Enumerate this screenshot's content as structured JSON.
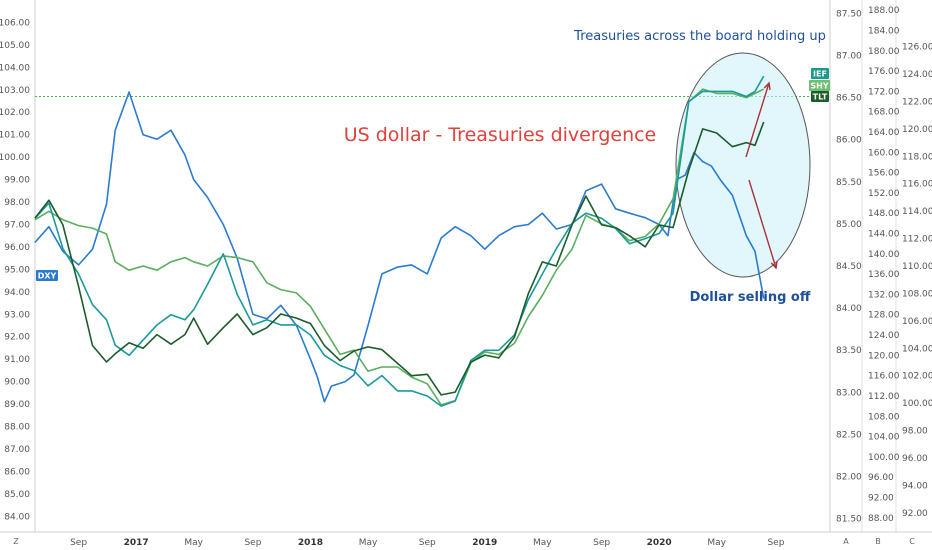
{
  "chart_data": {
    "type": "line",
    "title": "US dollar - Treasuries divergence",
    "annotations": [
      "Treasuries across the board holding up",
      "Dollar selling off"
    ],
    "x_ticks": [
      {
        "label": "Sep",
        "x": 2016.67
      },
      {
        "label": "2017",
        "x": 2017.0
      },
      {
        "label": "May",
        "x": 2017.33
      },
      {
        "label": "Sep",
        "x": 2017.67
      },
      {
        "label": "2018",
        "x": 2018.0
      },
      {
        "label": "May",
        "x": 2018.33
      },
      {
        "label": "Sep",
        "x": 2018.67
      },
      {
        "label": "2019",
        "x": 2019.0
      },
      {
        "label": "May",
        "x": 2019.33
      },
      {
        "label": "Sep",
        "x": 2019.67
      },
      {
        "label": "2020",
        "x": 2020.0
      },
      {
        "label": "May",
        "x": 2020.33
      },
      {
        "label": "Sep",
        "x": 2020.67
      }
    ],
    "x_range": [
      2016.42,
      2020.98
    ],
    "axes": {
      "left": {
        "range": [
          83.3,
          107.0
        ],
        "ticks": [
          "84.00",
          "85.00",
          "86.00",
          "87.00",
          "88.00",
          "89.00",
          "90.00",
          "91.00",
          "92.00",
          "93.00",
          "94.00",
          "95.00",
          "96.00",
          "97.00",
          "98.00",
          "99.00",
          "100.00",
          "101.00",
          "102.00",
          "103.00",
          "104.00",
          "105.00",
          "106.00"
        ]
      },
      "right1": {
        "range": [
          81.34,
          87.66
        ],
        "ticks": [
          "81.50",
          "82.00",
          "82.50",
          "83.00",
          "83.50",
          "84.00",
          "84.50",
          "85.00",
          "85.50",
          "86.00",
          "86.50",
          "87.00",
          "87.50"
        ]
      },
      "right2": {
        "range": [
          85.2,
          190.0
        ],
        "ticks": [
          "88.00",
          "92.00",
          "96.00",
          "100.00",
          "104.00",
          "108.00",
          "112.00",
          "116.00",
          "120.00",
          "124.00",
          "128.00",
          "132.00",
          "136.00",
          "140.00",
          "144.00",
          "148.00",
          "152.00",
          "156.00",
          "160.00",
          "164.00",
          "168.00",
          "172.00",
          "176.00",
          "180.00",
          "184.00",
          "188.00"
        ]
      },
      "right3": {
        "range": [
          90.6,
          129.4
        ],
        "ticks": [
          "92.00",
          "94.00",
          "96.00",
          "98.00",
          "100.00",
          "102.00",
          "104.00",
          "106.00",
          "108.00",
          "110.00",
          "112.00",
          "114.00",
          "116.00",
          "118.00",
          "120.00",
          "122.00",
          "124.00",
          "126.00"
        ]
      }
    },
    "reference_line": {
      "axis": "left",
      "value": 102.7
    },
    "series": [
      {
        "name": "DXY",
        "axis": "left",
        "color": "#2a7bd0",
        "x": [
          2016.42,
          2016.5,
          2016.58,
          2016.67,
          2016.75,
          2016.83,
          2016.88,
          2016.96,
          2017.04,
          2017.12,
          2017.2,
          2017.28,
          2017.33,
          2017.41,
          2017.5,
          2017.58,
          2017.67,
          2017.75,
          2017.83,
          2017.92,
          2018.0,
          2018.04,
          2018.08,
          2018.12,
          2018.2,
          2018.25,
          2018.33,
          2018.41,
          2018.5,
          2018.58,
          2018.67,
          2018.75,
          2018.83,
          2018.92,
          2019.0,
          2019.08,
          2019.17,
          2019.25,
          2019.33,
          2019.41,
          2019.5,
          2019.58,
          2019.67,
          2019.75,
          2019.83,
          2019.92,
          2020.0,
          2020.05,
          2020.1,
          2020.15,
          2020.2,
          2020.25,
          2020.3,
          2020.35,
          2020.42,
          2020.5,
          2020.55,
          2020.6
        ],
        "y": [
          96.2,
          96.9,
          95.8,
          95.2,
          95.9,
          97.9,
          101.2,
          102.9,
          101.0,
          100.8,
          101.2,
          100.1,
          99.0,
          98.2,
          97.0,
          95.5,
          93.0,
          92.8,
          93.4,
          92.5,
          91.0,
          90.2,
          89.1,
          89.8,
          90.0,
          90.3,
          92.5,
          94.8,
          95.1,
          95.2,
          94.8,
          96.4,
          96.9,
          96.5,
          95.9,
          96.5,
          96.9,
          97.0,
          97.5,
          96.8,
          97.0,
          98.5,
          98.8,
          97.7,
          97.5,
          97.3,
          97.0,
          96.5,
          99.0,
          99.2,
          100.2,
          99.8,
          99.6,
          99.0,
          98.3,
          96.5,
          95.8,
          93.7
        ]
      },
      {
        "name": "IEF",
        "axis": "right1",
        "color": "#5aae5f",
        "x": [
          2016.42,
          2016.5,
          2016.58,
          2016.67,
          2016.75,
          2016.83,
          2016.88,
          2016.96,
          2017.04,
          2017.12,
          2017.2,
          2017.28,
          2017.33,
          2017.41,
          2017.5,
          2017.58,
          2017.67,
          2017.75,
          2017.83,
          2017.92,
          2018.0,
          2018.08,
          2018.17,
          2018.25,
          2018.33,
          2018.41,
          2018.5,
          2018.58,
          2018.67,
          2018.75,
          2018.83,
          2018.92,
          2019.0,
          2019.08,
          2019.17,
          2019.25,
          2019.33,
          2019.41,
          2019.5,
          2019.58,
          2019.67,
          2019.75,
          2019.83,
          2019.92,
          2020.0,
          2020.08,
          2020.17,
          2020.25,
          2020.33,
          2020.42,
          2020.5,
          2020.55,
          2020.6
        ],
        "y": [
          85.05,
          85.15,
          85.05,
          84.98,
          84.95,
          84.88,
          84.55,
          84.45,
          84.5,
          84.45,
          84.55,
          84.6,
          84.55,
          84.5,
          84.62,
          84.6,
          84.55,
          84.3,
          84.22,
          84.18,
          84.02,
          83.75,
          83.45,
          83.5,
          83.25,
          83.3,
          83.3,
          83.18,
          83.1,
          82.85,
          82.9,
          83.35,
          83.48,
          83.45,
          83.58,
          83.9,
          84.15,
          84.45,
          84.7,
          85.1,
          85.0,
          84.95,
          84.8,
          84.85,
          85.0,
          85.3,
          86.45,
          86.6,
          86.55,
          86.55,
          86.5,
          86.55,
          86.6
        ]
      },
      {
        "name": "SHY",
        "axis": "right2",
        "color": "#1a9a9a",
        "x": [
          2016.42,
          2016.5,
          2016.58,
          2016.67,
          2016.75,
          2016.83,
          2016.88,
          2016.96,
          2017.04,
          2017.12,
          2017.2,
          2017.28,
          2017.33,
          2017.41,
          2017.5,
          2017.58,
          2017.67,
          2017.75,
          2017.83,
          2017.92,
          2018.0,
          2018.08,
          2018.17,
          2018.25,
          2018.33,
          2018.41,
          2018.5,
          2018.58,
          2018.67,
          2018.75,
          2018.83,
          2018.92,
          2019.0,
          2019.08,
          2019.17,
          2019.25,
          2019.33,
          2019.41,
          2019.5,
          2019.58,
          2019.67,
          2019.75,
          2019.83,
          2019.92,
          2020.0,
          2020.08,
          2020.17,
          2020.25,
          2020.33,
          2020.42,
          2020.5,
          2020.55,
          2020.6
        ],
        "y": [
          147,
          150,
          141,
          136,
          130,
          127,
          122,
          120,
          123,
          126,
          128,
          127,
          129,
          134,
          140,
          132,
          126,
          127,
          126,
          126,
          124,
          120,
          118,
          117,
          114,
          116,
          113,
          113,
          112,
          110,
          111,
          119,
          121,
          121,
          124,
          131,
          136,
          141,
          146,
          148,
          147,
          145,
          142,
          143,
          144,
          148,
          170,
          172,
          172,
          172,
          171,
          172,
          175
        ]
      },
      {
        "name": "TLT",
        "axis": "right3",
        "color": "#1c5c2a",
        "x": [
          2016.42,
          2016.5,
          2016.58,
          2016.67,
          2016.75,
          2016.83,
          2016.88,
          2016.96,
          2017.04,
          2017.12,
          2017.2,
          2017.28,
          2017.33,
          2017.41,
          2017.5,
          2017.58,
          2017.67,
          2017.75,
          2017.83,
          2017.92,
          2018.0,
          2018.08,
          2018.17,
          2018.25,
          2018.33,
          2018.41,
          2018.5,
          2018.58,
          2018.67,
          2018.75,
          2018.83,
          2018.92,
          2019.0,
          2019.08,
          2019.17,
          2019.25,
          2019.33,
          2019.41,
          2019.5,
          2019.58,
          2019.67,
          2019.75,
          2019.83,
          2019.92,
          2020.0,
          2020.08,
          2020.17,
          2020.25,
          2020.33,
          2020.42,
          2020.5,
          2020.55,
          2020.6
        ],
        "y": [
          113.5,
          114.8,
          113.0,
          108.5,
          104.2,
          103.0,
          103.6,
          104.4,
          104.0,
          105.0,
          104.3,
          105.0,
          106.2,
          104.3,
          105.5,
          106.5,
          105.0,
          105.5,
          106.5,
          106.2,
          105.8,
          104.2,
          103.1,
          103.8,
          104.1,
          103.9,
          102.9,
          102.0,
          102.1,
          100.6,
          100.8,
          103.0,
          103.5,
          103.3,
          104.8,
          108.0,
          110.3,
          110.0,
          113.0,
          115.1,
          113.0,
          112.8,
          112.2,
          111.4,
          113.0,
          112.8,
          117.0,
          120.0,
          119.7,
          118.7,
          119.0,
          118.8,
          120.5
        ]
      }
    ],
    "end_labels": [
      "IEF",
      "SHY",
      "TLT"
    ],
    "start_label": "DXY",
    "bottom_corner_labels": [
      "Z",
      "A",
      "B",
      "C"
    ]
  }
}
